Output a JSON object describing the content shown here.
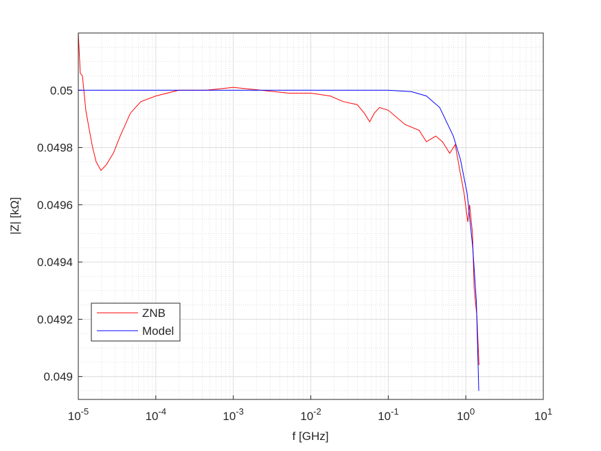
{
  "chart_data": {
    "type": "line",
    "xlabel": "f [GHz]",
    "ylabel": "|Z| [kΩ]",
    "xscale": "log",
    "grid": true,
    "minor_grid": true,
    "legend_position": "southwest",
    "xlim": [
      1e-05,
      10
    ],
    "ylim": [
      0.04892,
      0.0502
    ],
    "xticks": [
      {
        "value": 1e-05,
        "label": "10^-5"
      },
      {
        "value": 0.0001,
        "label": "10^-4"
      },
      {
        "value": 0.001,
        "label": "10^-3"
      },
      {
        "value": 0.01,
        "label": "10^-2"
      },
      {
        "value": 0.1,
        "label": "10^-1"
      },
      {
        "value": 1,
        "label": "10^0"
      },
      {
        "value": 10,
        "label": "10^1"
      }
    ],
    "yticks": [
      0.049,
      0.0492,
      0.0494,
      0.0496,
      0.0498,
      0.05
    ],
    "series": [
      {
        "name": "ZNB",
        "color": "#ff0000",
        "x": [
          1e-05,
          1.06e-05,
          1.13e-05,
          1.25e-05,
          1.39e-05,
          1.53e-05,
          1.7e-05,
          1.96e-05,
          2.3e-05,
          2.83e-05,
          3.47e-05,
          4.7e-05,
          6.4e-05,
          0.0001,
          0.000197,
          0.00044,
          0.001,
          0.0023,
          0.0052,
          0.01,
          0.0178,
          0.0265,
          0.0396,
          0.049,
          0.0576,
          0.066,
          0.077,
          0.1,
          0.165,
          0.25,
          0.31,
          0.41,
          0.5,
          0.62,
          0.73,
          0.85,
          0.95,
          1.06,
          1.12,
          1.22,
          1.28,
          1.39,
          1.48
        ],
        "values": [
          0.0502,
          0.05006,
          0.05005,
          0.04993,
          0.04986,
          0.0498,
          0.04975,
          0.04972,
          0.04974,
          0.04978,
          0.04984,
          0.04992,
          0.04996,
          0.04998,
          0.05,
          0.05,
          0.05001,
          0.05,
          0.04999,
          0.04999,
          0.04998,
          0.04996,
          0.04995,
          0.04992,
          0.04989,
          0.04992,
          0.04994,
          0.04993,
          0.04988,
          0.04986,
          0.04982,
          0.04984,
          0.04982,
          0.04978,
          0.04981,
          0.04971,
          0.04964,
          0.04954,
          0.0496,
          0.0495,
          0.04931,
          0.04921,
          0.04904
        ]
      },
      {
        "name": "Model",
        "color": "#0000ff",
        "x": [
          1e-05,
          0.0001,
          0.001,
          0.01,
          0.05,
          0.1,
          0.2,
          0.31,
          0.46,
          0.69,
          0.85,
          1.04,
          1.23,
          1.37,
          1.47
        ],
        "values": [
          0.05,
          0.05,
          0.05,
          0.05,
          0.05,
          0.05,
          0.049995,
          0.04998,
          0.04994,
          0.04984,
          0.04976,
          0.04964,
          0.04945,
          0.04926,
          0.04895
        ]
      }
    ]
  }
}
